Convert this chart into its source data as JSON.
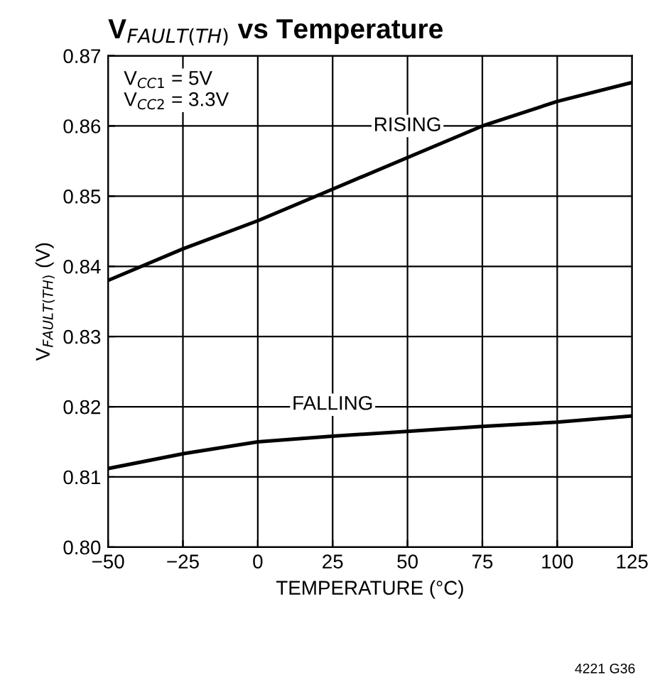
{
  "chart_data": {
    "type": "line",
    "title": "V$_{FAULT(TH)}$ vs Temperature",
    "xlabel": "TEMPERATURE (°C)",
    "ylabel": "V$_{FAULT(TH)}$ (V)",
    "x": [
      -50,
      -25,
      0,
      25,
      50,
      75,
      100,
      125
    ],
    "series": [
      {
        "name": "RISING",
        "color": "#000000",
        "values": [
          0.838,
          0.8425,
          0.8465,
          0.851,
          0.8555,
          0.86,
          0.8635,
          0.8662
        ]
      },
      {
        "name": "FALLING",
        "color": "#000000",
        "values": [
          0.8112,
          0.8133,
          0.815,
          0.8158,
          0.8165,
          0.8172,
          0.8178,
          0.8187
        ]
      }
    ],
    "xlim": [
      -50,
      125
    ],
    "xticks": [
      {
        "value": -50,
        "label": "−50"
      },
      {
        "value": -25,
        "label": "−25"
      },
      0,
      25,
      50,
      75,
      100,
      125
    ],
    "ylim": [
      0.8,
      0.87
    ],
    "yticks": [
      {
        "value": 0.8,
        "label": "0.80"
      },
      0.81,
      0.82,
      0.83,
      0.84,
      0.85,
      0.86,
      0.87
    ],
    "annotations": [
      "V$_{CC1}$ = 5V\nV$_{CC2}$ = 3.3V",
      "4221 G36"
    ],
    "grid": true,
    "legend": false,
    "marker": "none",
    "line_style": "solid"
  }
}
